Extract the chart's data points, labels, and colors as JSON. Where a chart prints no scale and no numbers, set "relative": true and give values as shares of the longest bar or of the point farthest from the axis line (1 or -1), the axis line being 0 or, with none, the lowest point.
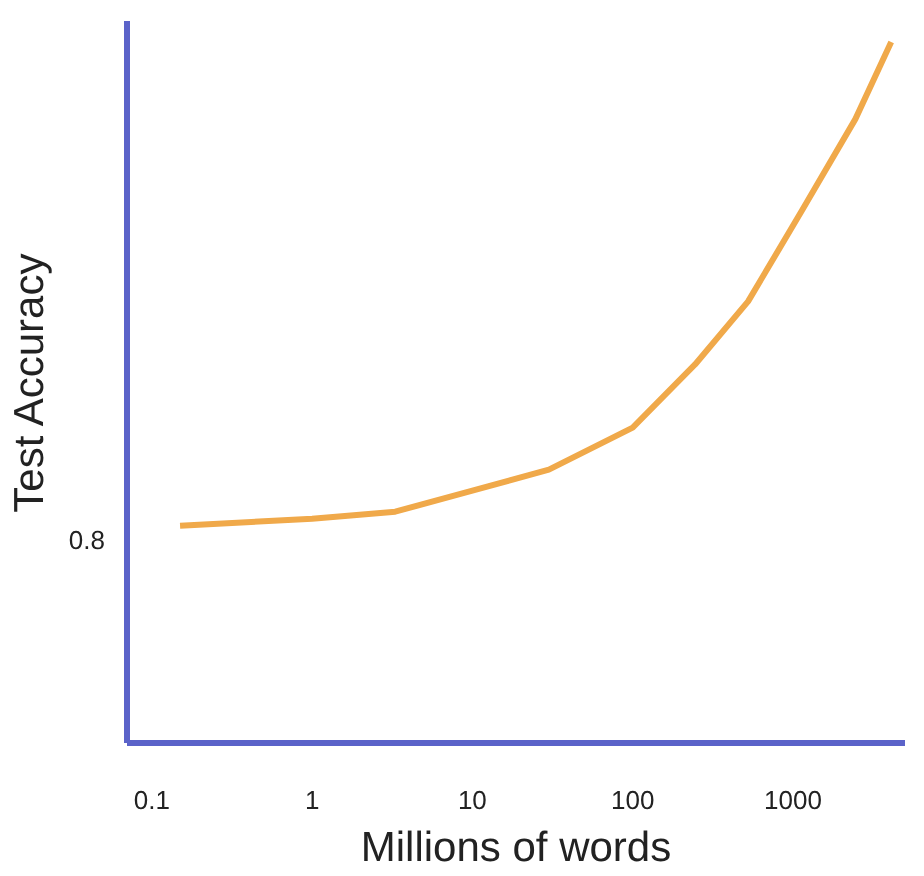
{
  "chart_data": {
    "type": "line",
    "xlabel": "Millions of words",
    "ylabel": "Test Accuracy",
    "relative": true,
    "log": "x",
    "grid": false,
    "marker": "none",
    "line_style": "solid",
    "x": [
      0.15,
      1,
      3.3,
      10,
      30,
      100,
      245,
      525,
      1140,
      2450,
      4100
    ],
    "xlim": [
      0.07,
      5000
    ],
    "xticks": [
      0.1,
      1,
      10,
      100,
      1000
    ],
    "series": [
      {
        "color": "#f0a94a",
        "values": [
          0.31,
          0.32,
          0.33,
          0.36,
          0.39,
          0.45,
          0.54,
          0.63,
          0.76,
          0.89,
          1.0
        ]
      }
    ],
    "annotations": [
      "0.8"
    ]
  }
}
